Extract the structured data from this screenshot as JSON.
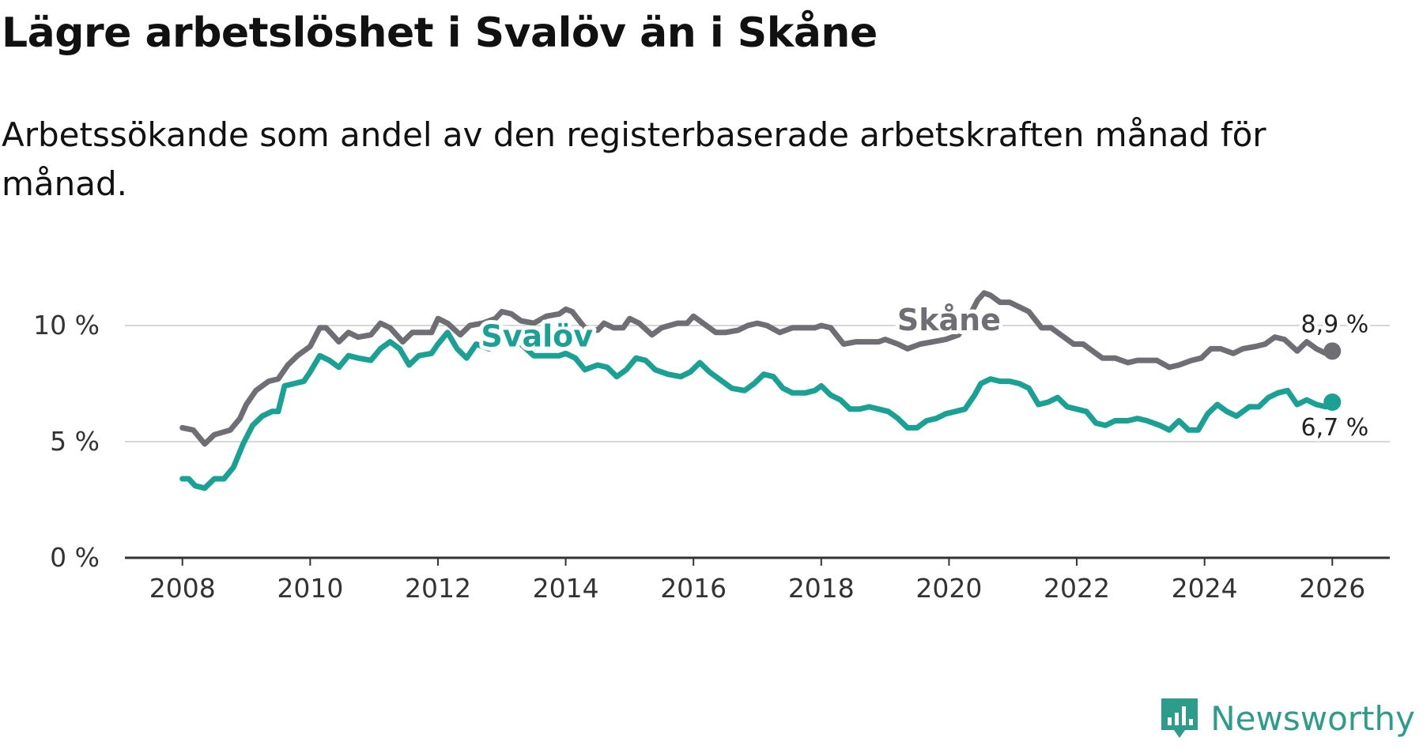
{
  "title": "Lägre arbetslöshet i Svalöv än i Skåne",
  "subtitle": "Arbetssökande som andel av den registerbaserade arbetskraften månad för månad.",
  "brand": {
    "name": "Newsworthy",
    "color": "#2e9c8a"
  },
  "chart_data": {
    "type": "line",
    "title": "Lägre arbetslöshet i Svalöv än i Skåne",
    "xlabel": "",
    "ylabel": "",
    "xlim": [
      2007.1,
      2026.9
    ],
    "ylim": [
      0,
      10
    ],
    "grid": true,
    "x_ticks": [
      {
        "value": 2008,
        "label": "2008"
      },
      {
        "value": 2010,
        "label": "2010"
      },
      {
        "value": 2012,
        "label": "2012"
      },
      {
        "value": 2014,
        "label": "2014"
      },
      {
        "value": 2016,
        "label": "2016"
      },
      {
        "value": 2018,
        "label": "2018"
      },
      {
        "value": 2020,
        "label": "2020"
      },
      {
        "value": 2022,
        "label": "2022"
      },
      {
        "value": 2024,
        "label": "2024"
      },
      {
        "value": 2026,
        "label": "2026"
      }
    ],
    "y_ticks": [
      {
        "value": 0,
        "label": "0 %"
      },
      {
        "value": 5,
        "label": "5 %"
      },
      {
        "value": 10,
        "label": "10 %"
      }
    ],
    "series": [
      {
        "name": "Skåne",
        "color": "#6f6e74",
        "label_at": [
          2020.0,
          9.8
        ],
        "end_label": "8,9 %",
        "points": [
          [
            2008.0,
            5.6
          ],
          [
            2008.17,
            5.5
          ],
          [
            2008.35,
            4.9
          ],
          [
            2008.5,
            5.3
          ],
          [
            2008.75,
            5.5
          ],
          [
            2008.9,
            6.0
          ],
          [
            2009.0,
            6.6
          ],
          [
            2009.15,
            7.2
          ],
          [
            2009.35,
            7.6
          ],
          [
            2009.5,
            7.7
          ],
          [
            2009.65,
            8.3
          ],
          [
            2009.8,
            8.7
          ],
          [
            2010.0,
            9.1
          ],
          [
            2010.15,
            9.9
          ],
          [
            2010.25,
            9.9
          ],
          [
            2010.45,
            9.3
          ],
          [
            2010.6,
            9.7
          ],
          [
            2010.75,
            9.5
          ],
          [
            2010.95,
            9.6
          ],
          [
            2011.1,
            10.1
          ],
          [
            2011.25,
            9.9
          ],
          [
            2011.45,
            9.3
          ],
          [
            2011.6,
            9.7
          ],
          [
            2011.8,
            9.7
          ],
          [
            2011.9,
            9.7
          ],
          [
            2012.0,
            10.3
          ],
          [
            2012.15,
            10.1
          ],
          [
            2012.35,
            9.6
          ],
          [
            2012.5,
            10.0
          ],
          [
            2012.7,
            10.1
          ],
          [
            2012.9,
            10.3
          ],
          [
            2013.0,
            10.6
          ],
          [
            2013.15,
            10.5
          ],
          [
            2013.3,
            10.2
          ],
          [
            2013.5,
            10.1
          ],
          [
            2013.7,
            10.4
          ],
          [
            2013.9,
            10.5
          ],
          [
            2014.0,
            10.7
          ],
          [
            2014.1,
            10.6
          ],
          [
            2014.3,
            9.9
          ],
          [
            2014.5,
            9.8
          ],
          [
            2014.6,
            10.1
          ],
          [
            2014.75,
            9.9
          ],
          [
            2014.9,
            9.9
          ],
          [
            2015.0,
            10.3
          ],
          [
            2015.15,
            10.1
          ],
          [
            2015.35,
            9.6
          ],
          [
            2015.5,
            9.9
          ],
          [
            2015.75,
            10.1
          ],
          [
            2015.9,
            10.1
          ],
          [
            2016.0,
            10.4
          ],
          [
            2016.15,
            10.1
          ],
          [
            2016.35,
            9.7
          ],
          [
            2016.5,
            9.7
          ],
          [
            2016.7,
            9.8
          ],
          [
            2016.85,
            10.0
          ],
          [
            2017.0,
            10.1
          ],
          [
            2017.15,
            10.0
          ],
          [
            2017.35,
            9.7
          ],
          [
            2017.55,
            9.9
          ],
          [
            2017.75,
            9.9
          ],
          [
            2017.9,
            9.9
          ],
          [
            2018.0,
            10.0
          ],
          [
            2018.15,
            9.9
          ],
          [
            2018.35,
            9.2
          ],
          [
            2018.55,
            9.3
          ],
          [
            2018.75,
            9.3
          ],
          [
            2018.9,
            9.3
          ],
          [
            2019.0,
            9.4
          ],
          [
            2019.2,
            9.2
          ],
          [
            2019.35,
            9.0
          ],
          [
            2019.55,
            9.2
          ],
          [
            2019.75,
            9.3
          ],
          [
            2019.95,
            9.4
          ],
          [
            2020.15,
            9.6
          ],
          [
            2020.3,
            10.3
          ],
          [
            2020.45,
            11.1
          ],
          [
            2020.55,
            11.4
          ],
          [
            2020.65,
            11.3
          ],
          [
            2020.8,
            11.0
          ],
          [
            2020.95,
            11.0
          ],
          [
            2021.1,
            10.8
          ],
          [
            2021.25,
            10.6
          ],
          [
            2021.45,
            9.9
          ],
          [
            2021.6,
            9.9
          ],
          [
            2021.8,
            9.5
          ],
          [
            2021.95,
            9.2
          ],
          [
            2022.1,
            9.2
          ],
          [
            2022.25,
            8.9
          ],
          [
            2022.4,
            8.6
          ],
          [
            2022.6,
            8.6
          ],
          [
            2022.8,
            8.4
          ],
          [
            2022.95,
            8.5
          ],
          [
            2023.1,
            8.5
          ],
          [
            2023.25,
            8.5
          ],
          [
            2023.45,
            8.2
          ],
          [
            2023.6,
            8.3
          ],
          [
            2023.8,
            8.5
          ],
          [
            2023.95,
            8.6
          ],
          [
            2024.1,
            9.0
          ],
          [
            2024.25,
            9.0
          ],
          [
            2024.45,
            8.8
          ],
          [
            2024.6,
            9.0
          ],
          [
            2024.8,
            9.1
          ],
          [
            2024.95,
            9.2
          ],
          [
            2025.1,
            9.5
          ],
          [
            2025.25,
            9.4
          ],
          [
            2025.45,
            8.9
          ],
          [
            2025.6,
            9.3
          ],
          [
            2025.75,
            9.0
          ],
          [
            2025.9,
            8.8
          ],
          [
            2026.0,
            8.9
          ]
        ]
      },
      {
        "name": "Svalöv",
        "color": "#1aa194",
        "label_at": [
          2013.55,
          9.1
        ],
        "end_label": "6,7 %",
        "points": [
          [
            2008.0,
            3.4
          ],
          [
            2008.1,
            3.4
          ],
          [
            2008.2,
            3.1
          ],
          [
            2008.35,
            3.0
          ],
          [
            2008.5,
            3.4
          ],
          [
            2008.65,
            3.4
          ],
          [
            2008.8,
            3.9
          ],
          [
            2008.95,
            4.9
          ],
          [
            2009.1,
            5.7
          ],
          [
            2009.25,
            6.1
          ],
          [
            2009.4,
            6.3
          ],
          [
            2009.5,
            6.3
          ],
          [
            2009.6,
            7.4
          ],
          [
            2009.75,
            7.5
          ],
          [
            2009.9,
            7.6
          ],
          [
            2010.0,
            8.0
          ],
          [
            2010.15,
            8.7
          ],
          [
            2010.3,
            8.5
          ],
          [
            2010.45,
            8.2
          ],
          [
            2010.6,
            8.7
          ],
          [
            2010.75,
            8.6
          ],
          [
            2010.95,
            8.5
          ],
          [
            2011.1,
            9.0
          ],
          [
            2011.25,
            9.3
          ],
          [
            2011.4,
            9.0
          ],
          [
            2011.55,
            8.3
          ],
          [
            2011.7,
            8.7
          ],
          [
            2011.9,
            8.8
          ],
          [
            2012.0,
            9.2
          ],
          [
            2012.15,
            9.7
          ],
          [
            2012.3,
            9.0
          ],
          [
            2012.45,
            8.6
          ],
          [
            2012.6,
            9.2
          ],
          [
            2012.8,
            9.0
          ],
          [
            2012.95,
            9.3
          ],
          [
            2013.1,
            9.5
          ],
          [
            2013.3,
            9.2
          ],
          [
            2013.5,
            8.7
          ],
          [
            2013.7,
            8.7
          ],
          [
            2013.9,
            8.7
          ],
          [
            2014.0,
            8.8
          ],
          [
            2014.15,
            8.6
          ],
          [
            2014.3,
            8.1
          ],
          [
            2014.5,
            8.3
          ],
          [
            2014.65,
            8.2
          ],
          [
            2014.8,
            7.8
          ],
          [
            2014.95,
            8.1
          ],
          [
            2015.1,
            8.6
          ],
          [
            2015.25,
            8.5
          ],
          [
            2015.4,
            8.1
          ],
          [
            2015.6,
            7.9
          ],
          [
            2015.8,
            7.8
          ],
          [
            2015.95,
            8.0
          ],
          [
            2016.1,
            8.4
          ],
          [
            2016.25,
            8.0
          ],
          [
            2016.45,
            7.6
          ],
          [
            2016.6,
            7.3
          ],
          [
            2016.8,
            7.2
          ],
          [
            2016.95,
            7.5
          ],
          [
            2017.1,
            7.9
          ],
          [
            2017.25,
            7.8
          ],
          [
            2017.4,
            7.3
          ],
          [
            2017.55,
            7.1
          ],
          [
            2017.75,
            7.1
          ],
          [
            2017.9,
            7.2
          ],
          [
            2018.0,
            7.4
          ],
          [
            2018.15,
            7.0
          ],
          [
            2018.3,
            6.8
          ],
          [
            2018.45,
            6.4
          ],
          [
            2018.6,
            6.4
          ],
          [
            2018.75,
            6.5
          ],
          [
            2018.9,
            6.4
          ],
          [
            2019.05,
            6.3
          ],
          [
            2019.2,
            6.0
          ],
          [
            2019.35,
            5.6
          ],
          [
            2019.5,
            5.6
          ],
          [
            2019.65,
            5.9
          ],
          [
            2019.8,
            6.0
          ],
          [
            2019.95,
            6.2
          ],
          [
            2020.1,
            6.3
          ],
          [
            2020.25,
            6.4
          ],
          [
            2020.4,
            7.0
          ],
          [
            2020.5,
            7.5
          ],
          [
            2020.65,
            7.7
          ],
          [
            2020.8,
            7.6
          ],
          [
            2020.95,
            7.6
          ],
          [
            2021.1,
            7.5
          ],
          [
            2021.25,
            7.3
          ],
          [
            2021.4,
            6.6
          ],
          [
            2021.55,
            6.7
          ],
          [
            2021.7,
            6.9
          ],
          [
            2021.85,
            6.5
          ],
          [
            2022.0,
            6.4
          ],
          [
            2022.15,
            6.3
          ],
          [
            2022.3,
            5.8
          ],
          [
            2022.45,
            5.7
          ],
          [
            2022.6,
            5.9
          ],
          [
            2022.8,
            5.9
          ],
          [
            2022.95,
            6.0
          ],
          [
            2023.1,
            5.9
          ],
          [
            2023.3,
            5.7
          ],
          [
            2023.45,
            5.5
          ],
          [
            2023.6,
            5.9
          ],
          [
            2023.75,
            5.5
          ],
          [
            2023.9,
            5.5
          ],
          [
            2024.05,
            6.2
          ],
          [
            2024.2,
            6.6
          ],
          [
            2024.35,
            6.3
          ],
          [
            2024.5,
            6.1
          ],
          [
            2024.7,
            6.5
          ],
          [
            2024.85,
            6.5
          ],
          [
            2025.0,
            6.9
          ],
          [
            2025.15,
            7.1
          ],
          [
            2025.3,
            7.2
          ],
          [
            2025.45,
            6.6
          ],
          [
            2025.6,
            6.8
          ],
          [
            2025.75,
            6.6
          ],
          [
            2025.9,
            6.5
          ],
          [
            2026.0,
            6.7
          ]
        ]
      }
    ]
  }
}
